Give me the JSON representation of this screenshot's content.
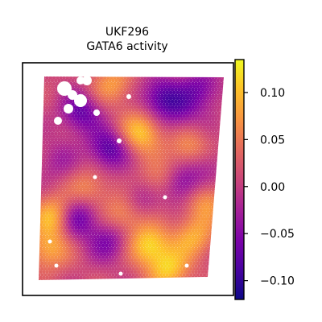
{
  "chart_data": {
    "type": "heatmap",
    "title": "UKF296",
    "subtitle": "GATA6 activity",
    "xlabel": "",
    "ylabel": "",
    "grid": false,
    "colormap": "plasma",
    "colorbar": {
      "range": [
        -0.12,
        0.135
      ],
      "ticks": [
        0.1,
        0.05,
        0.0,
        -0.05,
        -0.1
      ],
      "tick_labels": [
        "0.10",
        "0.05",
        "0.00",
        "−0.05",
        "−0.10"
      ]
    }
  }
}
